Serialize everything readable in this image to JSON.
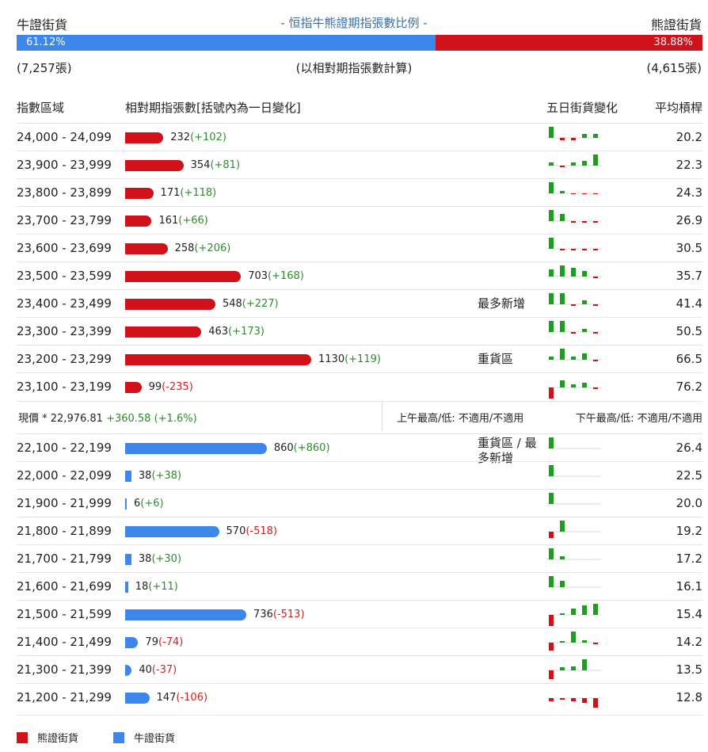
{
  "header": {
    "bull_label": "牛證街貨",
    "title": "- 恒指牛熊證期指張數比例 -",
    "bear_label": "熊證街貨",
    "bull_pct": "61.12%",
    "bear_pct": "38.88%",
    "bull_ratio": 0.6112,
    "bull_count": "(7,257張)",
    "bear_count": "(4,615張)",
    "basis_note": "(以相對期指張數計算)"
  },
  "columns": {
    "range": "指數區域",
    "contracts": "相對期指張數[括號內為一日變化]",
    "five_day": "五日街貨變化",
    "avg_leverage": "平均槓桿"
  },
  "colors": {
    "bear": "#d0111a",
    "bull": "#3c86ec",
    "pos": "#2e8b2e",
    "neg": "#cc2222",
    "spark_pos": "#1e9e1e",
    "spark_neg": "#d0111a"
  },
  "bear_rows": [
    {
      "range": "24,000 - 24,099",
      "count": "232",
      "change": "(+102)",
      "value": 232,
      "avg": "20.2",
      "note": "",
      "spark": [
        14,
        -3,
        -3,
        5,
        5
      ]
    },
    {
      "range": "23,900 - 23,999",
      "count": "354",
      "change": "(+81)",
      "value": 354,
      "avg": "22.3",
      "note": "",
      "spark": [
        4,
        -2,
        4,
        6,
        14
      ]
    },
    {
      "range": "23,800 - 23,899",
      "count": "171",
      "change": "(+118)",
      "value": 171,
      "avg": "24.3",
      "note": "",
      "spark": [
        14,
        3,
        -1,
        -1,
        -1
      ]
    },
    {
      "range": "23,700 - 23,799",
      "count": "161",
      "change": "(+66)",
      "value": 161,
      "avg": "26.9",
      "note": "",
      "spark": [
        14,
        9,
        -2,
        -2,
        -2
      ]
    },
    {
      "range": "23,600 - 23,699",
      "count": "258",
      "change": "(+206)",
      "value": 258,
      "avg": "30.5",
      "note": "",
      "spark": [
        14,
        -2,
        -2,
        -2,
        -2
      ]
    },
    {
      "range": "23,500 - 23,599",
      "count": "703",
      "change": "(+168)",
      "value": 703,
      "avg": "35.7",
      "note": "",
      "spark": [
        9,
        14,
        11,
        7,
        -2
      ]
    },
    {
      "range": "23,400 - 23,499",
      "count": "548",
      "change": "(+227)",
      "value": 548,
      "avg": "41.4",
      "note": "最多新增",
      "spark": [
        14,
        14,
        -2,
        5,
        -2
      ]
    },
    {
      "range": "23,300 - 23,399",
      "count": "463",
      "change": "(+173)",
      "value": 463,
      "avg": "50.5",
      "note": "",
      "spark": [
        14,
        14,
        -2,
        4,
        -2
      ]
    },
    {
      "range": "23,200 - 23,299",
      "count": "1130",
      "change": "(+119)",
      "value": 1130,
      "avg": "66.5",
      "note": "重貨區",
      "spark": [
        4,
        14,
        4,
        8,
        -2
      ]
    },
    {
      "range": "23,100 - 23,199",
      "count": "99",
      "change": "(-235)",
      "value": 99,
      "avg": "76.2",
      "note": "",
      "spark": [
        -14,
        9,
        4,
        6,
        -2
      ]
    }
  ],
  "price_row": {
    "current": "現價 *  22,976.81",
    "change": "+360.58 (+1.6%)",
    "am": "上午最高/低: 不適用/不適用",
    "pm": "下午最高/低: 不適用/不適用"
  },
  "bull_rows": [
    {
      "range": "22,100 - 22,199",
      "count": "860",
      "change": "(+860)",
      "value": 860,
      "avg": "26.4",
      "note": "重貨區 / 最多新增",
      "spark": [
        14,
        0,
        0,
        0,
        0
      ]
    },
    {
      "range": "22,000 - 22,099",
      "count": "38",
      "change": "(+38)",
      "value": 38,
      "avg": "22.5",
      "note": "",
      "spark": [
        14,
        0,
        0,
        0,
        0
      ]
    },
    {
      "range": "21,900 - 21,999",
      "count": "6",
      "change": "(+6)",
      "value": 6,
      "avg": "20.0",
      "note": "",
      "spark": [
        14,
        0,
        0,
        0,
        0
      ]
    },
    {
      "range": "21,800 - 21,899",
      "count": "570",
      "change": "(-518)",
      "value": 570,
      "avg": "19.2",
      "note": "",
      "spark": [
        -8,
        14,
        0,
        0,
        0
      ]
    },
    {
      "range": "21,700 - 21,799",
      "count": "38",
      "change": "(+30)",
      "value": 38,
      "avg": "17.2",
      "note": "",
      "spark": [
        14,
        4,
        0,
        0,
        0
      ]
    },
    {
      "range": "21,600 - 21,699",
      "count": "18",
      "change": "(+11)",
      "value": 18,
      "avg": "16.1",
      "note": "",
      "spark": [
        14,
        8,
        0,
        0,
        0
      ]
    },
    {
      "range": "21,500 - 21,599",
      "count": "736",
      "change": "(-513)",
      "value": 736,
      "avg": "15.4",
      "note": "",
      "spark": [
        -14,
        2,
        8,
        12,
        14
      ]
    },
    {
      "range": "21,400 - 21,499",
      "count": "79",
      "change": "(-74)",
      "value": 79,
      "avg": "14.2",
      "note": "",
      "spark": [
        -10,
        2,
        14,
        3,
        -2
      ]
    },
    {
      "range": "21,300 - 21,399",
      "count": "40",
      "change": "(-37)",
      "value": 40,
      "avg": "13.5",
      "note": "",
      "spark": [
        -11,
        4,
        5,
        14,
        0
      ]
    },
    {
      "range": "21,200 - 21,299",
      "count": "147",
      "change": "(-106)",
      "value": 147,
      "avg": "12.8",
      "note": "",
      "spark": [
        -4,
        -2,
        -4,
        -6,
        -12
      ]
    }
  ],
  "legend": {
    "bear": "熊證街貨",
    "bull": "牛證街貨"
  }
}
